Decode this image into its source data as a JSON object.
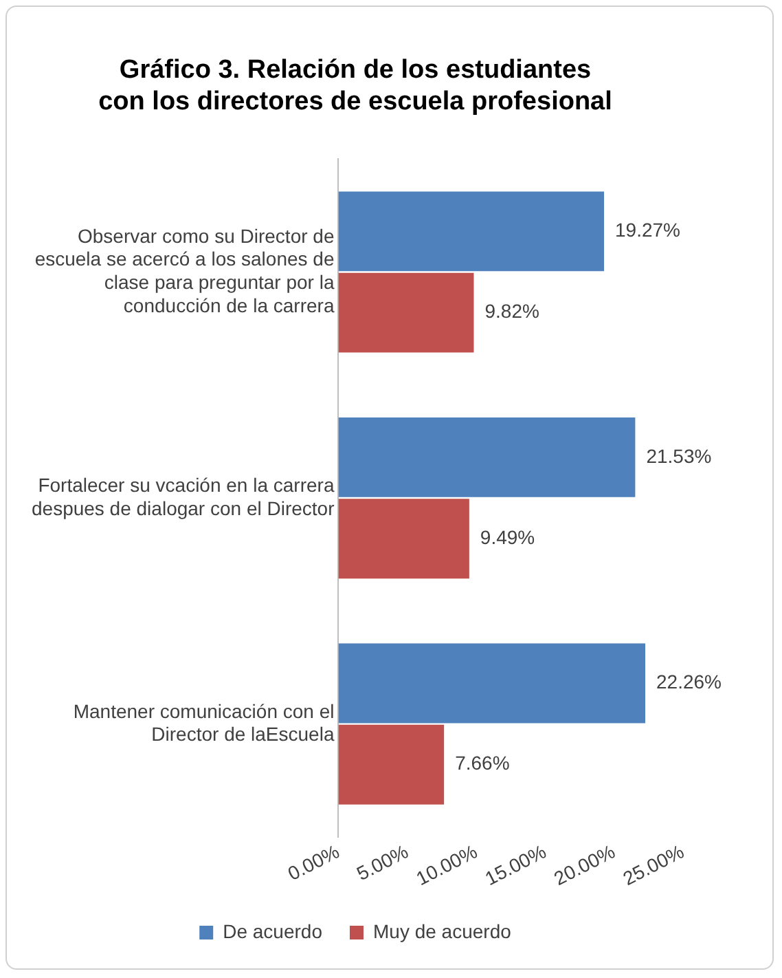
{
  "chart_data": {
    "type": "bar",
    "orientation": "horizontal",
    "title": "Gráfico 3. Relación de los estudiantes con los directores de escuela profesional",
    "categories": [
      "Observar como su Director de escuela se acercó a los salones de clase para preguntar por la conducción de la carrera",
      "Fortalecer su vcación en la carrera despues de dialogar con el Director",
      "Mantener comunicación con el Director de laEscuela"
    ],
    "series": [
      {
        "name": "De acuerdo",
        "color": "#4f81bd",
        "values": [
          19.27,
          21.53,
          22.26
        ],
        "value_labels": [
          "19.27%",
          "21.53%",
          "22.26%"
        ]
      },
      {
        "name": "Muy de acuerdo",
        "color": "#c0504d",
        "values": [
          9.82,
          9.49,
          7.66
        ],
        "value_labels": [
          "9.82%",
          "9.49%",
          "7.66%"
        ]
      }
    ],
    "xlim": [
      0,
      25
    ],
    "xticks": [
      {
        "value": 0,
        "label": "0.00%"
      },
      {
        "value": 5,
        "label": "5.00%"
      },
      {
        "value": 10,
        "label": "10.00%"
      },
      {
        "value": 15,
        "label": "15.00%"
      },
      {
        "value": 20,
        "label": "20.00%"
      },
      {
        "value": 25,
        "label": "25.00%"
      }
    ],
    "grid": false,
    "legend": "bottom"
  }
}
